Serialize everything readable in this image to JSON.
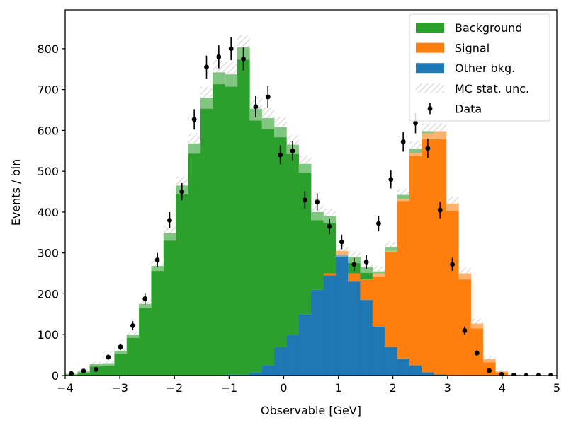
{
  "chart_data": {
    "type": "bar",
    "xlabel": "Observable [GeV]",
    "ylabel": "Events / bin",
    "xlim": [
      -4,
      5
    ],
    "ylim": [
      0,
      895
    ],
    "xticks": [
      -4,
      -3,
      -2,
      -1,
      0,
      1,
      2,
      3,
      4,
      5
    ],
    "xtick_labels": [
      "−4",
      "−3",
      "−2",
      "−1",
      "0",
      "1",
      "2",
      "3",
      "4",
      "5"
    ],
    "yticks": [
      0,
      100,
      200,
      300,
      400,
      500,
      600,
      700,
      800
    ],
    "yticks_labels": [
      "0",
      "100",
      "200",
      "300",
      "400",
      "500",
      "600",
      "700",
      "800"
    ],
    "grid": false,
    "legend_position": "top-right",
    "bin_edges": [
      -4,
      -3.775,
      -3.55,
      -3.325,
      -3.1,
      -2.875,
      -2.65,
      -2.425,
      -2.2,
      -1.975,
      -1.75,
      -1.525,
      -1.3,
      -1.075,
      -0.85,
      -0.625,
      -0.4,
      -0.175,
      0.05,
      0.275,
      0.5,
      0.725,
      0.95,
      1.175,
      1.4,
      1.625,
      1.85,
      2.075,
      2.3,
      2.525,
      2.75,
      2.975,
      3.2,
      3.425,
      3.65,
      3.875,
      4.1,
      4.325,
      4.55,
      4.775,
      5
    ],
    "series": [
      {
        "name": "Other bkg.",
        "color": "#1f77b4",
        "values": [
          0,
          0,
          0,
          0,
          0,
          0,
          0,
          0,
          0,
          0,
          0,
          0,
          0,
          2,
          3,
          8,
          25,
          70,
          100,
          150,
          210,
          245,
          295,
          230,
          185,
          120,
          70,
          42,
          25,
          8,
          3,
          1,
          0,
          0,
          0,
          0,
          0,
          0,
          0,
          0
        ]
      },
      {
        "name": "Signal",
        "color": "#ff7f0e",
        "values": [
          0,
          0,
          0,
          0,
          0,
          0,
          0,
          0,
          0,
          0,
          0,
          0,
          0,
          0,
          0,
          0,
          0,
          0,
          0,
          0,
          0,
          5,
          10,
          20,
          50,
          130,
          235,
          390,
          520,
          585,
          595,
          420,
          250,
          127,
          40,
          10,
          2,
          0,
          0,
          0
        ]
      },
      {
        "name": "Background",
        "color": "#2ca02c",
        "values": [
          4,
          10,
          28,
          30,
          60,
          100,
          175,
          268,
          348,
          465,
          568,
          680,
          742,
          735,
          800,
          645,
          605,
          538,
          465,
          368,
          190,
          140,
          0,
          40,
          30,
          5,
          10,
          10,
          10,
          5,
          0,
          0,
          0,
          0,
          0,
          0,
          0,
          0,
          0,
          0
        ]
      }
    ],
    "mc_stat_unc": [
      3,
      5,
      6,
      6,
      7,
      8,
      10,
      12,
      18,
      22,
      25,
      27,
      29,
      30,
      30,
      29,
      27,
      25,
      23,
      21,
      20,
      17,
      14,
      15,
      14,
      13,
      13,
      15,
      18,
      20,
      20,
      18,
      15,
      12,
      8,
      4,
      2,
      1,
      1,
      1
    ],
    "data": {
      "name": "Data",
      "x": [
        -3.888,
        -3.663,
        -3.438,
        -3.213,
        -2.988,
        -2.763,
        -2.538,
        -2.313,
        -2.088,
        -1.863,
        -1.638,
        -1.413,
        -1.188,
        -0.963,
        -0.738,
        -0.513,
        -0.288,
        -0.063,
        0.163,
        0.388,
        0.613,
        0.838,
        1.063,
        1.288,
        1.513,
        1.738,
        1.963,
        2.188,
        2.413,
        2.638,
        2.863,
        3.088,
        3.313,
        3.538,
        3.763,
        3.988,
        4.213,
        4.438,
        4.663,
        4.888
      ],
      "y": [
        5,
        11,
        15,
        45,
        70,
        122,
        188,
        283,
        380,
        450,
        627,
        755,
        780,
        800,
        775,
        658,
        682,
        540,
        550,
        430,
        425,
        365,
        327,
        272,
        278,
        372,
        480,
        572,
        618,
        556,
        405,
        272,
        110,
        55,
        12,
        3,
        1,
        0,
        0,
        0
      ],
      "yerr": [
        2,
        3,
        4,
        7,
        8,
        11,
        14,
        17,
        20,
        21,
        25,
        28,
        28,
        28,
        28,
        26,
        26,
        23,
        23,
        21,
        21,
        19,
        18,
        16,
        17,
        19,
        22,
        24,
        25,
        24,
        20,
        16,
        10,
        7,
        3,
        2,
        1,
        0,
        0,
        0
      ]
    },
    "legend": [
      {
        "label": "Background",
        "kind": "patch",
        "color": "#2ca02c"
      },
      {
        "label": "Signal",
        "kind": "patch",
        "color": "#ff7f0e"
      },
      {
        "label": "Other bkg.",
        "kind": "patch",
        "color": "#1f77b4"
      },
      {
        "label": "MC stat. unc.",
        "kind": "hatch",
        "color": "#cfcfcf"
      },
      {
        "label": "Data",
        "kind": "errorbar",
        "color": "#000000"
      }
    ]
  }
}
